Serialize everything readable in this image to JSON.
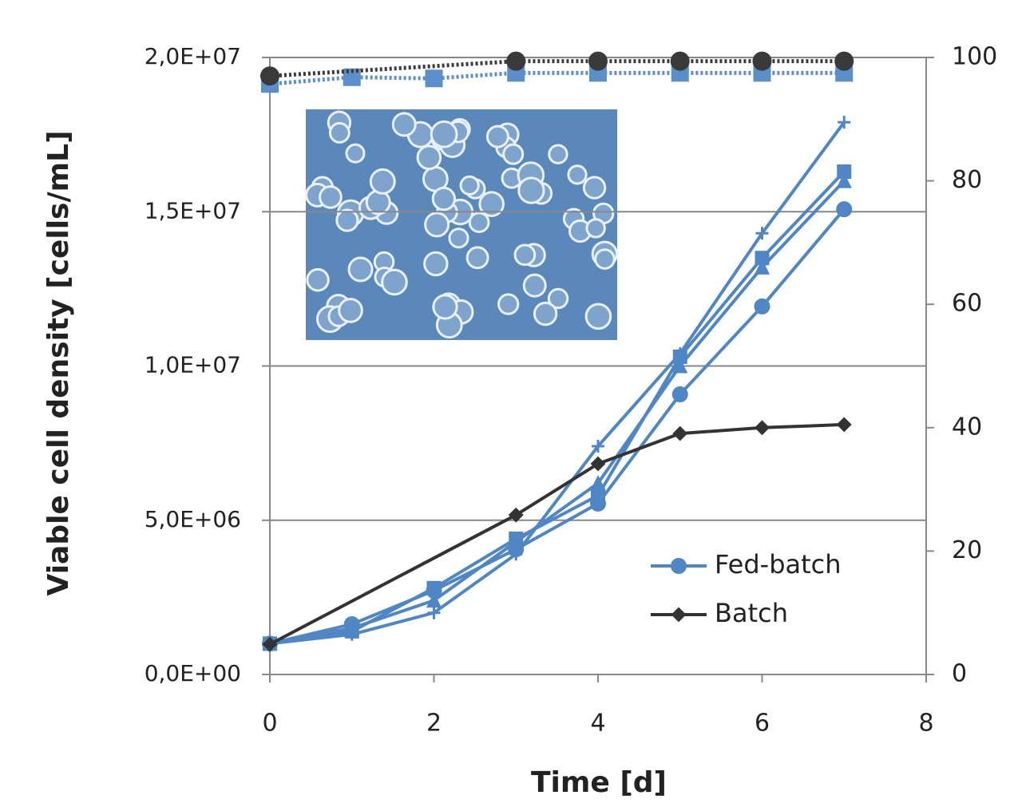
{
  "chart_data": {
    "type": "line",
    "xlabel": "Time [d]",
    "ylabel": "Viable cell density [cells/mL]",
    "xlim": [
      0,
      8
    ],
    "xticks": [
      0,
      2,
      4,
      6,
      8
    ],
    "ylim": [
      0,
      20000000
    ],
    "yticks": [
      {
        "value": 0,
        "label": "0,0E+00"
      },
      {
        "value": 5000000,
        "label": "5,0E+06"
      },
      {
        "value": 10000000,
        "label": "1,0E+07"
      },
      {
        "value": 15000000,
        "label": "1,5E+07"
      },
      {
        "value": 20000000,
        "label": "2,0E+07"
      }
    ],
    "y2lim": [
      0,
      100
    ],
    "y2ticks": [
      0,
      20,
      40,
      60,
      80,
      100
    ],
    "grid": true,
    "legend": "lower right",
    "series": [
      {
        "name": "Fed-batch",
        "color": "#4f86c6",
        "marker": "circle",
        "x": [
          0,
          1,
          2,
          3,
          4,
          5,
          6,
          7
        ],
        "values": [
          1000000,
          1630000,
          2720000,
          4060000,
          5540000,
          9080000,
          11930000,
          15080000
        ]
      },
      {
        "color": "#4f86c6",
        "marker": "square",
        "x": [
          0,
          1,
          2,
          3,
          4,
          5,
          6,
          7
        ],
        "values": [
          1000000,
          1400000,
          2800000,
          4400000,
          5800000,
          10300000,
          13500000,
          16300000
        ]
      },
      {
        "color": "#4f86c6",
        "marker": "plus",
        "x": [
          0,
          1,
          2,
          3,
          4,
          5,
          6,
          7
        ],
        "values": [
          1000000,
          1300000,
          2000000,
          3900000,
          7400000,
          10400000,
          14300000,
          17900000
        ]
      },
      {
        "color": "#4f86c6",
        "marker": "triangle",
        "x": [
          0,
          1,
          2,
          3,
          4,
          5,
          6,
          7
        ],
        "values": [
          1000000,
          1500000,
          2400000,
          4300000,
          6200000,
          10000000,
          13200000,
          16000000
        ]
      },
      {
        "name": "Batch",
        "color": "#333333",
        "marker": "diamond",
        "x": [
          0,
          3,
          4,
          5,
          6,
          7
        ],
        "values": [
          980000,
          5170000,
          6830000,
          7810000,
          8000000,
          8100000
        ]
      },
      {
        "color": "#5b8fc9",
        "marker": "square",
        "dash": "dotted",
        "axis": "y2",
        "x": [
          0,
          1,
          2,
          3,
          4,
          5,
          6,
          7
        ],
        "values": [
          95.7,
          96.8,
          96.6,
          97.5,
          97.5,
          97.5,
          97.5,
          97.5
        ]
      },
      {
        "color": "#3a3a3a",
        "marker": "circle",
        "dash": "dotted",
        "axis": "y2",
        "x": [
          0,
          3,
          4,
          5,
          6,
          7
        ],
        "values": [
          97.0,
          99.4,
          99.4,
          99.4,
          99.4,
          99.4
        ]
      }
    ]
  }
}
